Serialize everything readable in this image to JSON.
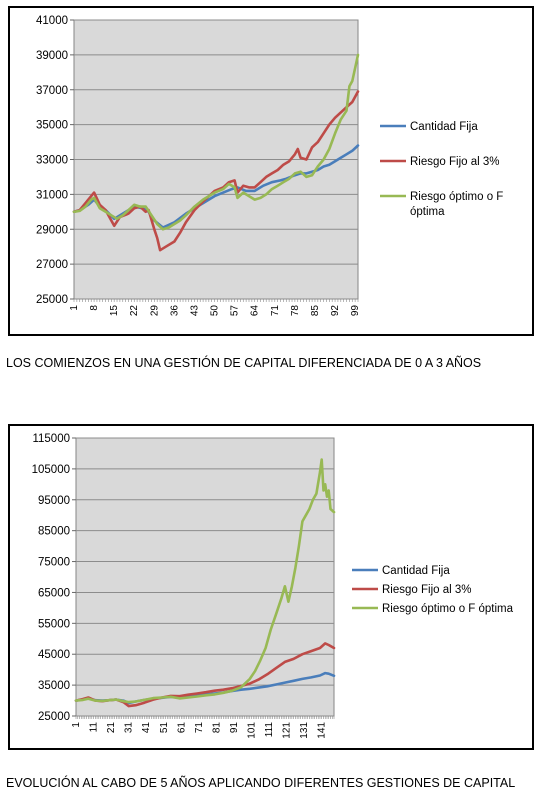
{
  "chart_data": [
    {
      "type": "line",
      "ylim": [
        25000,
        41000
      ],
      "y_ticks": [
        "41000",
        "39000",
        "37000",
        "35000",
        "33000",
        "31000",
        "29000",
        "27000",
        "25000"
      ],
      "x_ticks": [
        "1",
        "8",
        "15",
        "22",
        "29",
        "36",
        "43",
        "50",
        "57",
        "64",
        "71",
        "78",
        "85",
        "92",
        "99"
      ],
      "x_range": [
        1,
        100
      ],
      "grid": true,
      "legend_position": "right",
      "series": [
        {
          "name": "Cantidad Fija",
          "color": "#4a7ebb",
          "x": [
            1,
            3,
            6,
            8,
            10,
            12,
            15,
            18,
            20,
            22,
            25,
            27,
            29,
            32,
            36,
            40,
            43,
            46,
            50,
            53,
            56,
            58,
            61,
            64,
            67,
            70,
            73,
            75,
            78,
            80,
            82,
            84,
            86,
            88,
            90,
            92,
            94,
            96,
            98,
            100
          ],
          "values": [
            30000,
            30100,
            30400,
            30700,
            30300,
            30100,
            29600,
            29900,
            30100,
            30300,
            30200,
            30000,
            29500,
            29100,
            29400,
            29900,
            30200,
            30500,
            30900,
            31100,
            31300,
            31400,
            31200,
            31200,
            31500,
            31700,
            31800,
            31900,
            32100,
            32200,
            32200,
            32300,
            32400,
            32600,
            32700,
            32900,
            33100,
            33300,
            33500,
            33800
          ]
        },
        {
          "name": "Riesgo Fijo al 3%",
          "color": "#be4b48",
          "x": [
            1,
            3,
            5,
            7,
            8,
            10,
            12,
            14,
            15,
            17,
            20,
            22,
            24,
            26,
            27,
            29,
            30,
            31,
            33,
            36,
            38,
            40,
            43,
            46,
            50,
            53,
            55,
            57,
            58,
            60,
            62,
            64,
            66,
            68,
            70,
            72,
            74,
            76,
            78,
            79,
            80,
            82,
            84,
            86,
            88,
            90,
            92,
            94,
            96,
            98,
            100
          ],
          "values": [
            30000,
            30100,
            30500,
            30900,
            31100,
            30400,
            30100,
            29500,
            29200,
            29700,
            29900,
            30200,
            30300,
            30000,
            30100,
            29000,
            28500,
            27800,
            28000,
            28300,
            28800,
            29400,
            30100,
            30600,
            31200,
            31400,
            31700,
            31800,
            31100,
            31500,
            31400,
            31400,
            31700,
            32000,
            32200,
            32400,
            32700,
            32900,
            33300,
            33600,
            33100,
            33000,
            33700,
            34000,
            34500,
            35000,
            35400,
            35700,
            36000,
            36300,
            36900
          ]
        },
        {
          "name": "Riesgo óptimo o F óptima",
          "color": "#98b954",
          "x": [
            1,
            3,
            5,
            7,
            8,
            10,
            12,
            14,
            16,
            18,
            20,
            22,
            24,
            26,
            28,
            30,
            32,
            34,
            36,
            38,
            40,
            43,
            46,
            50,
            53,
            55,
            57,
            58,
            60,
            62,
            64,
            66,
            68,
            70,
            72,
            74,
            76,
            78,
            80,
            82,
            84,
            86,
            88,
            90,
            92,
            94,
            96,
            97,
            98,
            100
          ],
          "values": [
            30000,
            30050,
            30300,
            30700,
            30800,
            30200,
            30000,
            29800,
            29600,
            29800,
            30100,
            30400,
            30300,
            30300,
            29800,
            29300,
            29000,
            29100,
            29300,
            29500,
            29800,
            30300,
            30700,
            31100,
            31300,
            31600,
            31400,
            30800,
            31100,
            30900,
            30700,
            30800,
            31000,
            31300,
            31500,
            31700,
            31900,
            32200,
            32300,
            32000,
            32100,
            32600,
            33000,
            33600,
            34500,
            35300,
            35800,
            37200,
            37500,
            39000
          ]
        }
      ]
    },
    {
      "type": "line",
      "ylim": [
        25000,
        115000
      ],
      "y_ticks": [
        "115000",
        "105000",
        "95000",
        "85000",
        "75000",
        "65000",
        "55000",
        "45000",
        "35000",
        "25000"
      ],
      "x_ticks": [
        "1",
        "11",
        "21",
        "31",
        "41",
        "51",
        "61",
        "71",
        "81",
        "91",
        "101",
        "111",
        "121",
        "131",
        "141"
      ],
      "x_range": [
        1,
        148
      ],
      "grid": true,
      "legend_position": "right",
      "series": [
        {
          "name": "Cantidad Fija",
          "color": "#4a7ebb",
          "x": [
            1,
            5,
            8,
            12,
            16,
            20,
            24,
            28,
            31,
            35,
            40,
            45,
            50,
            55,
            60,
            65,
            70,
            75,
            80,
            85,
            90,
            95,
            100,
            105,
            110,
            115,
            120,
            125,
            130,
            135,
            140,
            143,
            145,
            148
          ],
          "values": [
            30000,
            30400,
            30800,
            30100,
            30000,
            30100,
            30300,
            30000,
            29200,
            29700,
            30200,
            30600,
            30900,
            31200,
            31100,
            31400,
            31700,
            32000,
            32300,
            32600,
            33100,
            33500,
            33800,
            34200,
            34600,
            35200,
            35800,
            36400,
            37000,
            37500,
            38100,
            38900,
            38700,
            38000
          ]
        },
        {
          "name": "Riesgo Fijo al 3%",
          "color": "#be4b48",
          "x": [
            1,
            5,
            8,
            12,
            16,
            20,
            24,
            28,
            31,
            35,
            40,
            45,
            50,
            55,
            60,
            65,
            70,
            75,
            80,
            85,
            90,
            95,
            100,
            105,
            110,
            115,
            120,
            125,
            130,
            135,
            140,
            143,
            145,
            148
          ],
          "values": [
            30000,
            30500,
            31000,
            30000,
            29800,
            30100,
            30300,
            29500,
            28200,
            28500,
            29300,
            30300,
            31000,
            31500,
            31400,
            31900,
            32300,
            32700,
            33200,
            33500,
            34000,
            34700,
            35500,
            36800,
            38500,
            40500,
            42500,
            43500,
            45000,
            46000,
            47000,
            48500,
            48000,
            47000
          ]
        },
        {
          "name": "Riesgo óptimo o F óptima",
          "color": "#98b954",
          "x": [
            1,
            5,
            8,
            12,
            16,
            20,
            24,
            28,
            31,
            35,
            40,
            45,
            50,
            55,
            60,
            65,
            70,
            75,
            80,
            85,
            90,
            95,
            100,
            103,
            106,
            109,
            112,
            115,
            118,
            120,
            122,
            124,
            126,
            128,
            130,
            132,
            134,
            136,
            138,
            140,
            141,
            142,
            143,
            144,
            145,
            146,
            148
          ],
          "values": [
            30000,
            30200,
            30600,
            30000,
            29900,
            30100,
            30300,
            29800,
            29500,
            29700,
            30200,
            30800,
            31000,
            31200,
            30700,
            31000,
            31300,
            31700,
            32000,
            32500,
            33200,
            34300,
            37000,
            39500,
            43000,
            47000,
            53000,
            58000,
            63000,
            67000,
            62000,
            67000,
            73000,
            80000,
            88000,
            90000,
            92000,
            95000,
            97000,
            104000,
            108000,
            98000,
            100000,
            96000,
            98000,
            92000,
            91000
          ]
        }
      ]
    }
  ],
  "captions": {
    "chart1": "LOS COMIENZOS EN UNA GESTIÓN DE CAPITAL DIFERENCIADA DE 0 A 3 AÑOS",
    "chart2": "EVOLUCIÓN AL CABO DE 5 AÑOS APLICANDO DIFERENTES GESTIONES DE CAPITAL"
  }
}
